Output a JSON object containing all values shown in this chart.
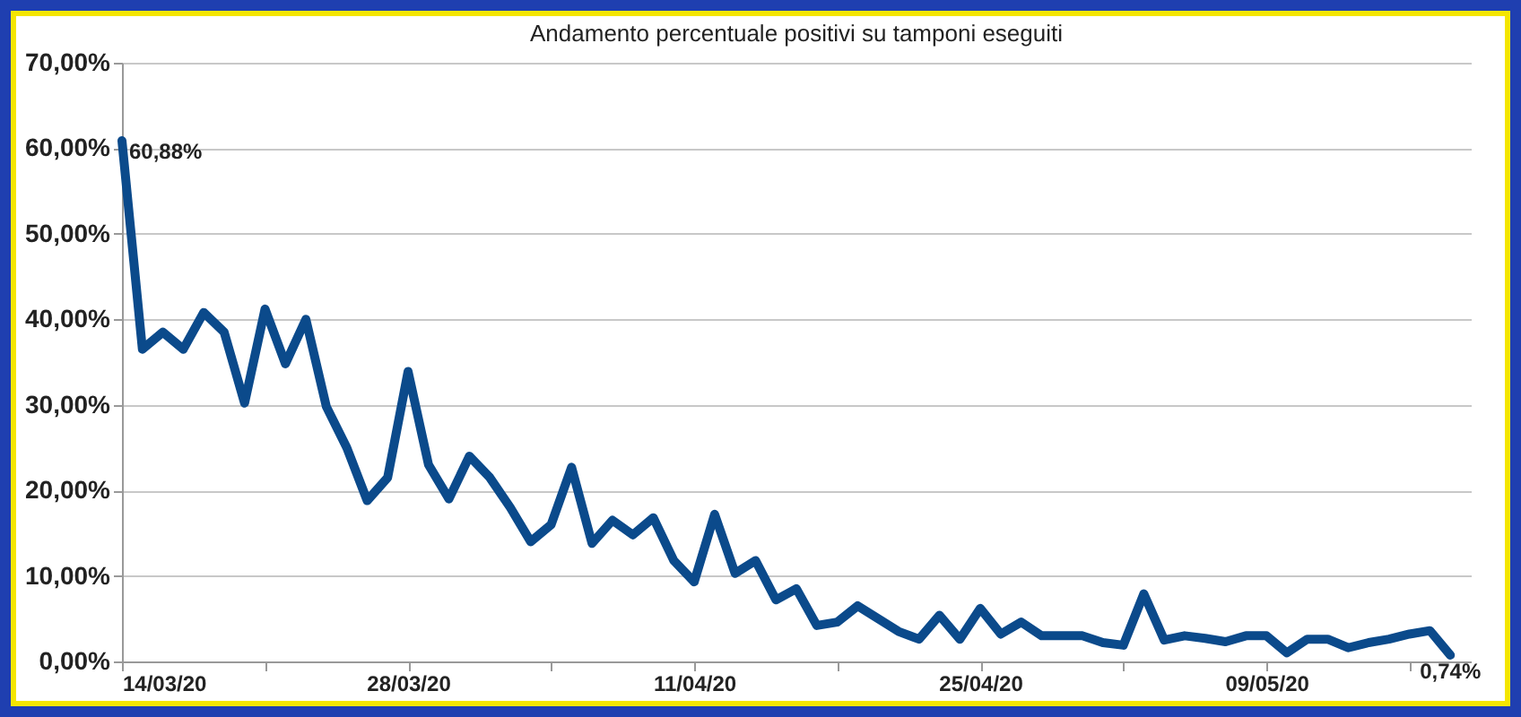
{
  "chart_data": {
    "type": "line",
    "title": "Andamento percentuale positivi su tamponi eseguiti",
    "x": [
      "--03-14",
      "--03-15",
      "--03-16",
      "--03-17",
      "--03-18",
      "--03-19",
      "--03-20",
      "--03-21",
      "--03-22",
      "--03-23",
      "--03-24",
      "--03-25",
      "--03-26",
      "--03-27",
      "--03-28",
      "--03-29",
      "--03-30",
      "--03-31",
      "--04-01",
      "--04-02",
      "--04-03",
      "--04-04",
      "--04-05",
      "--04-06",
      "--04-07",
      "--04-08",
      "--04-09",
      "--04-10",
      "--04-11",
      "--04-12",
      "--04-13",
      "--04-14",
      "--04-15",
      "--04-16",
      "--04-17",
      "--04-18",
      "--04-19",
      "--04-20",
      "--04-21",
      "--04-22",
      "--04-23",
      "--04-24",
      "--04-25",
      "--04-26",
      "--04-27",
      "--04-28",
      "--04-29",
      "--04-30",
      "--05-01",
      "--05-02",
      "--05-03",
      "--05-04",
      "--05-05",
      "--05-06",
      "--05-07",
      "--05-08",
      "--05-09",
      "--05-10",
      "--05-11",
      "--05-12",
      "--05-13",
      "--05-14",
      "--05-15",
      "--05-16",
      "--05-17",
      "--05-18"
    ],
    "series": [
      {
        "color": "#0b4a8b",
        "values": [
          60.88,
          36.5,
          38.5,
          36.5,
          40.8,
          38.5,
          30.2,
          41.2,
          34.8,
          40,
          29.8,
          25,
          18.8,
          21.5,
          33.9,
          23,
          19,
          24,
          21.5,
          18,
          14,
          16,
          22.7,
          13.8,
          16.5,
          14.8,
          16.8,
          11.8,
          9.3,
          17.2,
          10.3,
          11.8,
          7.2,
          8.5,
          4.2,
          4.6,
          6.5,
          5,
          3.5,
          2.6,
          5.4,
          2.6,
          6.2,
          3.2,
          4.6,
          3,
          3,
          3,
          2.2,
          1.9,
          7.9,
          2.5,
          3,
          2.7,
          2.3,
          3,
          3,
          1,
          2.6,
          2.6,
          1.6,
          2.2,
          2.6,
          3.2,
          3.6,
          0.74
        ],
        "value_labels": [
          "60,88%",
          null,
          null,
          null,
          null,
          null,
          null,
          null,
          null,
          null,
          null,
          null,
          null,
          null,
          null,
          null,
          null,
          null,
          null,
          null,
          null,
          null,
          null,
          null,
          null,
          null,
          null,
          null,
          null,
          null,
          null,
          null,
          null,
          null,
          null,
          null,
          null,
          null,
          null,
          null,
          null,
          null,
          null,
          null,
          null,
          null,
          null,
          null,
          null,
          null,
          null,
          null,
          null,
          null,
          null,
          null,
          null,
          null,
          null,
          null,
          null,
          null,
          null,
          null,
          null,
          "0,74%"
        ]
      }
    ],
    "xlim": [
      "--03-14",
      "--05-19"
    ],
    "xticks": [
      {
        "value": "--03-14",
        "label": "14/03/20"
      },
      {
        "value": "--03-21",
        "label": null
      },
      {
        "value": "--03-28",
        "label": "28/03/20"
      },
      {
        "value": "--04-04",
        "label": null
      },
      {
        "value": "--04-11",
        "label": "11/04/20"
      },
      {
        "value": "--04-18",
        "label": null
      },
      {
        "value": "--04-25",
        "label": "25/04/20"
      },
      {
        "value": "--05-02",
        "label": null
      },
      {
        "value": "--05-09",
        "label": "09/05/20"
      },
      {
        "value": "--05-16",
        "label": null
      }
    ],
    "ylim": [
      0,
      70
    ],
    "yticks": [
      {
        "value": 0,
        "label": "0,00%"
      },
      {
        "value": 10,
        "label": "10,00%"
      },
      {
        "value": 20,
        "label": "20,00%"
      },
      {
        "value": 30,
        "label": "30,00%"
      },
      {
        "value": 40,
        "label": "40,00%"
      },
      {
        "value": 50,
        "label": "50,00%"
      },
      {
        "value": 60,
        "label": "60,00%"
      },
      {
        "value": 70,
        "label": "70,00%"
      }
    ],
    "grid": "y",
    "marker": "none",
    "line_style": "solid"
  }
}
